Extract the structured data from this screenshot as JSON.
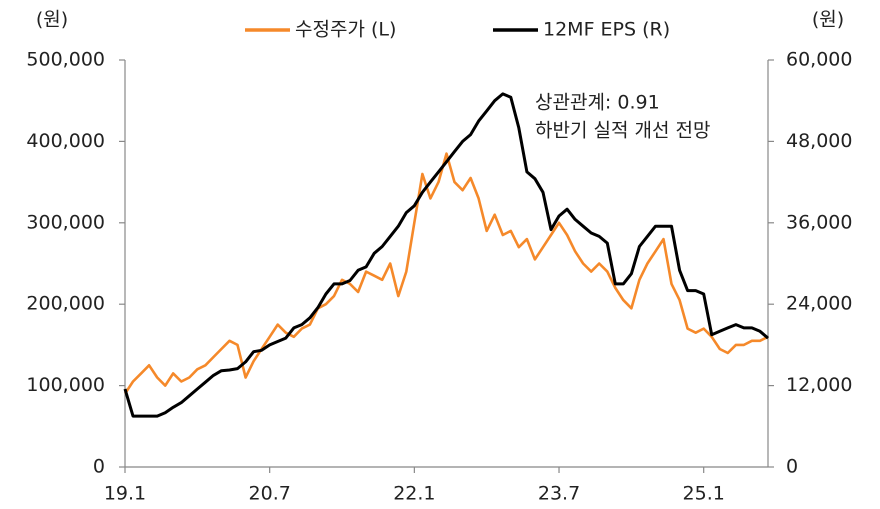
{
  "chart_data": {
    "type": "line",
    "legend": "top",
    "y_unit_left": "(원)",
    "y_unit_right": "(원)",
    "annotations": [
      "상관관계: 0.91",
      "하반기 실적 개선 전망"
    ],
    "annotation_color": "#c00000",
    "categories": [
      "19.1",
      null,
      null,
      null,
      null,
      null,
      null,
      null,
      null,
      null,
      null,
      null,
      null,
      null,
      null,
      null,
      null,
      null,
      "20.7",
      null,
      null,
      null,
      null,
      null,
      null,
      null,
      null,
      null,
      null,
      null,
      null,
      null,
      null,
      null,
      null,
      null,
      "22.1",
      null,
      null,
      null,
      null,
      null,
      null,
      null,
      null,
      null,
      null,
      null,
      null,
      null,
      null,
      null,
      null,
      null,
      "23.7",
      null,
      null,
      null,
      null,
      null,
      null,
      null,
      null,
      null,
      null,
      null,
      null,
      null,
      null,
      null,
      null,
      null,
      "25.1",
      null,
      null,
      null,
      null,
      null,
      null,
      null,
      null
    ],
    "series": [
      {
        "name": "수정주가 (L)",
        "color": "#f5892a",
        "values": [
          90000,
          105000,
          115000,
          125000,
          110000,
          100000,
          115000,
          105000,
          110000,
          120000,
          125000,
          135000,
          145000,
          155000,
          150000,
          110000,
          130000,
          145000,
          160000,
          175000,
          165000,
          160000,
          170000,
          175000,
          195000,
          200000,
          210000,
          230000,
          225000,
          215000,
          240000,
          235000,
          230000,
          250000,
          210000,
          240000,
          300000,
          360000,
          330000,
          350000,
          385000,
          350000,
          340000,
          355000,
          330000,
          290000,
          310000,
          285000,
          290000,
          270000,
          280000,
          255000,
          270000,
          285000,
          300000,
          285000,
          265000,
          250000,
          240000,
          250000,
          240000,
          220000,
          205000,
          195000,
          230000,
          250000,
          265000,
          280000,
          225000,
          205000,
          170000,
          165000,
          170000,
          160000,
          145000,
          140000,
          150000,
          150000,
          155000,
          155000,
          160000
        ]
      },
      {
        "name": "12MF EPS (R)",
        "color": "#000000",
        "axis": "y2",
        "values": [
          11500,
          7500,
          7500,
          7500,
          7500,
          8000,
          8800,
          9500,
          10500,
          11500,
          12500,
          13500,
          14200,
          14300,
          14500,
          15500,
          17000,
          17200,
          18000,
          18500,
          19000,
          20500,
          21000,
          22000,
          23500,
          25500,
          27000,
          27000,
          27500,
          29000,
          29500,
          31500,
          32500,
          34000,
          35500,
          37500,
          38500,
          40500,
          42000,
          43500,
          45000,
          46500,
          48000,
          49000,
          51000,
          52500,
          54000,
          55000,
          54500,
          50000,
          43500,
          42500,
          40500,
          35000,
          37000,
          38000,
          36500,
          35500,
          34500,
          34000,
          33000,
          27000,
          27000,
          28500,
          32500,
          34000,
          35500,
          35500,
          35500,
          29000,
          26000,
          26000,
          25500,
          19500,
          20000,
          20500,
          21000,
          20500,
          20500,
          20000,
          19000
        ]
      }
    ],
    "ylim": [
      0,
      500000
    ],
    "yticks": [
      0,
      {
        "value": 100000,
        "label": "100,000"
      },
      {
        "value": 200000,
        "label": "200,000"
      },
      {
        "value": 300000,
        "label": "300,000"
      },
      {
        "value": 400000,
        "label": "400,000"
      },
      {
        "value": 500000,
        "label": "500,000"
      }
    ],
    "y2lim": [
      0,
      60000
    ],
    "y2ticks": [
      0,
      {
        "value": 12000,
        "label": "12,000"
      },
      {
        "value": 24000,
        "label": "24,000"
      },
      {
        "value": 36000,
        "label": "36,000"
      },
      {
        "value": 48000,
        "label": "48,000"
      },
      {
        "value": 60000,
        "label": "60,000"
      }
    ]
  }
}
